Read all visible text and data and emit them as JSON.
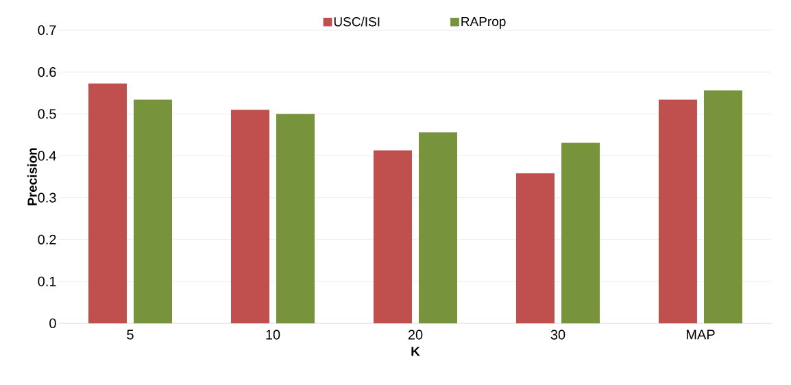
{
  "chart_data": {
    "type": "bar",
    "xlabel": "K",
    "ylabel": "Precision",
    "categories": [
      "5",
      "10",
      "20",
      "30",
      "MAP"
    ],
    "series": [
      {
        "name": "USC/ISI",
        "color": "#c0504d",
        "values": [
          0.573,
          0.51,
          0.413,
          0.358,
          0.534
        ]
      },
      {
        "name": "RAProp",
        "color": "#77933c",
        "values": [
          0.534,
          0.5,
          0.456,
          0.431,
          0.556
        ]
      }
    ],
    "ylim": [
      0,
      0.7
    ],
    "yticks": [
      0,
      0.1,
      0.2,
      0.3,
      0.4,
      0.5,
      0.6,
      0.7
    ],
    "grid": "y",
    "legend": "top"
  }
}
